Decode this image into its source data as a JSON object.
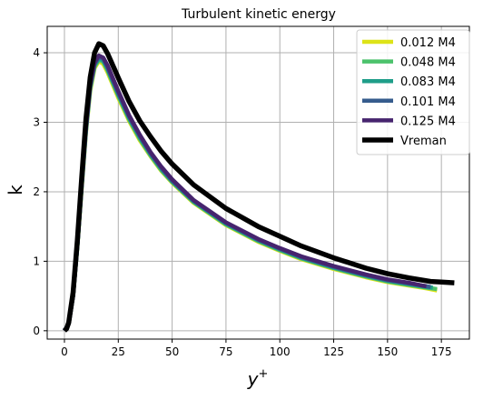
{
  "chart_data": {
    "type": "line",
    "title": "Turbulent kinetic energy",
    "xlabel_main": "y",
    "xlabel_sup": "+",
    "ylabel": "k",
    "xlim": [
      -8,
      188
    ],
    "ylim": [
      -0.12,
      4.38
    ],
    "xticks": [
      0,
      25,
      50,
      75,
      100,
      125,
      150,
      175
    ],
    "yticks": [
      0,
      1,
      2,
      3,
      4
    ],
    "grid": true,
    "legend_position": "top-right",
    "series": [
      {
        "name": "0.012 M4",
        "color": "#dde318",
        "points": [
          [
            0,
            0
          ],
          [
            2,
            0.1
          ],
          [
            4,
            0.5
          ],
          [
            6,
            1.2
          ],
          [
            8,
            2.05
          ],
          [
            10,
            2.85
          ],
          [
            12,
            3.45
          ],
          [
            14,
            3.78
          ],
          [
            16,
            3.88
          ],
          [
            18,
            3.84
          ],
          [
            20,
            3.72
          ],
          [
            22,
            3.57
          ],
          [
            25,
            3.35
          ],
          [
            30,
            3.02
          ],
          [
            35,
            2.74
          ],
          [
            40,
            2.51
          ],
          [
            45,
            2.3
          ],
          [
            50,
            2.13
          ],
          [
            60,
            1.84
          ],
          [
            75,
            1.52
          ],
          [
            90,
            1.28
          ],
          [
            100,
            1.15
          ],
          [
            110,
            1.03
          ],
          [
            125,
            0.89
          ],
          [
            140,
            0.77
          ],
          [
            150,
            0.7
          ],
          [
            160,
            0.65
          ],
          [
            168,
            0.61
          ],
          [
            173,
            0.58
          ]
        ]
      },
      {
        "name": "0.048 M4",
        "color": "#4cc26c",
        "points": [
          [
            0,
            0
          ],
          [
            2,
            0.1
          ],
          [
            4,
            0.5
          ],
          [
            6,
            1.2
          ],
          [
            8,
            2.07
          ],
          [
            10,
            2.87
          ],
          [
            12,
            3.48
          ],
          [
            14,
            3.8
          ],
          [
            16,
            3.9
          ],
          [
            18,
            3.87
          ],
          [
            20,
            3.75
          ],
          [
            22,
            3.6
          ],
          [
            25,
            3.38
          ],
          [
            30,
            3.04
          ],
          [
            35,
            2.76
          ],
          [
            40,
            2.52
          ],
          [
            45,
            2.31
          ],
          [
            50,
            2.14
          ],
          [
            60,
            1.85
          ],
          [
            75,
            1.53
          ],
          [
            90,
            1.29
          ],
          [
            100,
            1.16
          ],
          [
            110,
            1.04
          ],
          [
            125,
            0.9
          ],
          [
            140,
            0.78
          ],
          [
            150,
            0.71
          ],
          [
            160,
            0.66
          ],
          [
            168,
            0.62
          ],
          [
            173,
            0.6
          ]
        ]
      },
      {
        "name": "0.083 M4",
        "color": "#1f9e89",
        "points": [
          [
            0,
            0
          ],
          [
            2,
            0.1
          ],
          [
            4,
            0.5
          ],
          [
            6,
            1.21
          ],
          [
            8,
            2.08
          ],
          [
            10,
            2.88
          ],
          [
            12,
            3.5
          ],
          [
            14,
            3.82
          ],
          [
            16,
            3.92
          ],
          [
            18,
            3.89
          ],
          [
            20,
            3.77
          ],
          [
            22,
            3.62
          ],
          [
            25,
            3.4
          ],
          [
            30,
            3.06
          ],
          [
            35,
            2.78
          ],
          [
            40,
            2.54
          ],
          [
            45,
            2.33
          ],
          [
            50,
            2.15
          ],
          [
            60,
            1.86
          ],
          [
            75,
            1.54
          ],
          [
            90,
            1.3
          ],
          [
            100,
            1.17
          ],
          [
            110,
            1.05
          ],
          [
            125,
            0.91
          ],
          [
            140,
            0.79
          ],
          [
            150,
            0.72
          ],
          [
            160,
            0.67
          ],
          [
            168,
            0.63
          ],
          [
            171,
            0.62
          ]
        ]
      },
      {
        "name": "0.101 M4",
        "color": "#365c8d",
        "points": [
          [
            0,
            0
          ],
          [
            2,
            0.1
          ],
          [
            4,
            0.5
          ],
          [
            6,
            1.22
          ],
          [
            8,
            2.09
          ],
          [
            10,
            2.9
          ],
          [
            12,
            3.52
          ],
          [
            14,
            3.84
          ],
          [
            16,
            3.94
          ],
          [
            18,
            3.91
          ],
          [
            20,
            3.79
          ],
          [
            22,
            3.64
          ],
          [
            25,
            3.42
          ],
          [
            30,
            3.08
          ],
          [
            35,
            2.8
          ],
          [
            40,
            2.55
          ],
          [
            45,
            2.34
          ],
          [
            50,
            2.16
          ],
          [
            60,
            1.87
          ],
          [
            75,
            1.55
          ],
          [
            90,
            1.31
          ],
          [
            100,
            1.18
          ],
          [
            110,
            1.06
          ],
          [
            125,
            0.92
          ],
          [
            140,
            0.8
          ],
          [
            150,
            0.73
          ],
          [
            160,
            0.68
          ],
          [
            168,
            0.64
          ],
          [
            170,
            0.63
          ]
        ]
      },
      {
        "name": "0.125 M4",
        "color": "#46246e",
        "points": [
          [
            0,
            0
          ],
          [
            2,
            0.1
          ],
          [
            4,
            0.5
          ],
          [
            6,
            1.22
          ],
          [
            8,
            2.1
          ],
          [
            10,
            2.92
          ],
          [
            12,
            3.54
          ],
          [
            14,
            3.86
          ],
          [
            16,
            3.96
          ],
          [
            18,
            3.93
          ],
          [
            20,
            3.82
          ],
          [
            22,
            3.67
          ],
          [
            25,
            3.45
          ],
          [
            30,
            3.1
          ],
          [
            35,
            2.82
          ],
          [
            40,
            2.57
          ],
          [
            45,
            2.36
          ],
          [
            50,
            2.18
          ],
          [
            60,
            1.88
          ],
          [
            75,
            1.56
          ],
          [
            90,
            1.32
          ],
          [
            100,
            1.19
          ],
          [
            110,
            1.07
          ],
          [
            125,
            0.93
          ],
          [
            140,
            0.81
          ],
          [
            150,
            0.74
          ],
          [
            160,
            0.69
          ],
          [
            166,
            0.65
          ],
          [
            168,
            0.64
          ]
        ]
      },
      {
        "name": "Vreman",
        "color": "#000000",
        "points": [
          [
            0,
            0
          ],
          [
            1,
            0.03
          ],
          [
            2,
            0.12
          ],
          [
            4,
            0.55
          ],
          [
            6,
            1.3
          ],
          [
            8,
            2.2
          ],
          [
            10,
            3.05
          ],
          [
            12,
            3.65
          ],
          [
            14,
            4.0
          ],
          [
            16,
            4.13
          ],
          [
            18,
            4.1
          ],
          [
            20,
            3.99
          ],
          [
            22,
            3.85
          ],
          [
            25,
            3.64
          ],
          [
            30,
            3.3
          ],
          [
            35,
            3.02
          ],
          [
            40,
            2.79
          ],
          [
            45,
            2.58
          ],
          [
            50,
            2.4
          ],
          [
            60,
            2.1
          ],
          [
            75,
            1.76
          ],
          [
            90,
            1.5
          ],
          [
            100,
            1.36
          ],
          [
            110,
            1.22
          ],
          [
            125,
            1.05
          ],
          [
            140,
            0.9
          ],
          [
            150,
            0.82
          ],
          [
            160,
            0.76
          ],
          [
            170,
            0.71
          ],
          [
            175,
            0.7
          ],
          [
            181,
            0.69
          ]
        ]
      }
    ]
  }
}
